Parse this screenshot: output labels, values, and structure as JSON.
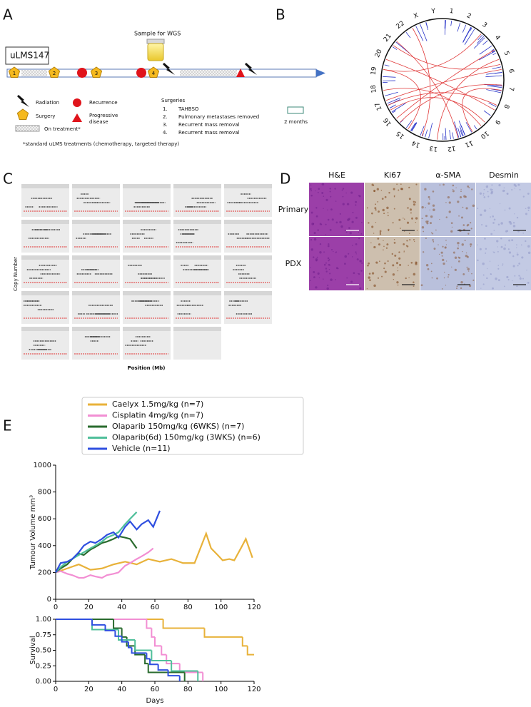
{
  "panel_a": {
    "label": "A",
    "sample": "Sample for WGS",
    "patient": "uLMS147",
    "events": [
      "1",
      "2",
      "3",
      "4"
    ],
    "legend": {
      "radiation": "Radiation",
      "surgery": "Surgery",
      "on_treatment": "On treatment*",
      "recurrence": "Recurrence",
      "progressive_disease": [
        "Progressive",
        "disease"
      ],
      "scale": "2 months"
    },
    "surgeries": {
      "title": "Surgeries",
      "items": [
        {
          "number": "1.",
          "text": "TAHBSO"
        },
        {
          "number": "2.",
          "text": "Pulmonary metastases removed"
        },
        {
          "number": "3.",
          "text": "Recurrent mass removal"
        },
        {
          "number": "4.",
          "text": "Recurrent mass removal"
        }
      ]
    },
    "footnote": "*standard uLMS treatments (chemotherapy, targeted therapy)"
  },
  "panel_b": {
    "label": "B",
    "chromosomes": [
      "1",
      "2",
      "3",
      "4",
      "5",
      "6",
      "7",
      "8",
      "9",
      "10",
      "11",
      "12",
      "13",
      "14",
      "15",
      "16",
      "17",
      "18",
      "19",
      "20",
      "21",
      "22",
      "X",
      "Y"
    ]
  },
  "panel_c": {
    "label": "C",
    "y_label": "Copy Number",
    "x_label": "Position (Mb)"
  },
  "panel_d": {
    "label": "D",
    "columns": [
      "H&E",
      "Ki67",
      "α-SMA",
      "Desmin"
    ],
    "rows": [
      "Primary",
      "PDX"
    ]
  },
  "panel_e": {
    "label": "E"
  },
  "chart_data": [
    {
      "type": "line",
      "ylabel": "Tumour Volume mm³",
      "xlim": [
        0,
        120
      ],
      "ylim": [
        0,
        1000
      ],
      "xticks": [
        0,
        20,
        40,
        60,
        80,
        100,
        120
      ],
      "yticks": [
        0,
        200,
        400,
        600,
        800,
        1000
      ],
      "series": [
        {
          "name": "Caelyx 1.5mg/kg (n=7)",
          "color": "#e8b23a",
          "x": [
            0,
            7,
            14,
            21,
            28,
            35,
            42,
            49,
            56,
            63,
            70,
            77,
            84,
            91,
            94,
            98,
            101,
            105,
            108,
            112,
            115,
            119
          ],
          "values": [
            200,
            230,
            260,
            220,
            230,
            260,
            280,
            260,
            300,
            280,
            300,
            270,
            270,
            490,
            380,
            330,
            290,
            300,
            290,
            380,
            450,
            310
          ]
        },
        {
          "name": "Cisplatin 4mg/kg (n=7)",
          "color": "#f28ed3",
          "x": [
            0,
            3,
            7,
            10,
            14,
            17,
            21,
            24,
            28,
            31,
            35,
            38,
            42,
            45,
            49,
            52,
            56,
            59
          ],
          "values": [
            200,
            210,
            190,
            180,
            160,
            160,
            180,
            170,
            160,
            180,
            190,
            200,
            250,
            270,
            300,
            320,
            350,
            380
          ]
        },
        {
          "name": "Olaparib 150mg/kg (6WKS) (n=7)",
          "color": "#2a6b2e",
          "x": [
            0,
            3,
            7,
            10,
            14,
            17,
            21,
            24,
            28,
            31,
            35,
            38,
            42,
            45,
            49
          ],
          "values": [
            200,
            230,
            260,
            300,
            340,
            330,
            370,
            390,
            420,
            430,
            450,
            470,
            460,
            450,
            380
          ]
        },
        {
          "name": "Olaparib(6d) 150mg/kg (3WKS) (n=6)",
          "color": "#4fbf9a",
          "x": [
            0,
            3,
            7,
            10,
            14,
            17,
            21,
            24,
            28,
            31,
            35,
            38,
            42,
            45,
            49
          ],
          "values": [
            200,
            240,
            280,
            300,
            330,
            350,
            380,
            400,
            430,
            460,
            480,
            500,
            560,
            600,
            650
          ]
        },
        {
          "name": "Vehicle (n=11)",
          "color": "#2f4fe0",
          "x": [
            0,
            3,
            7,
            10,
            14,
            17,
            21,
            24,
            28,
            31,
            35,
            38,
            42,
            45,
            49,
            52,
            56,
            59,
            63
          ],
          "values": [
            200,
            270,
            280,
            300,
            350,
            400,
            430,
            420,
            450,
            480,
            500,
            460,
            540,
            580,
            520,
            560,
            590,
            540,
            660
          ]
        }
      ]
    },
    {
      "type": "step",
      "xlabel": "Days",
      "ylabel": "Survival",
      "xlim": [
        0,
        120
      ],
      "ylim": [
        0,
        1
      ],
      "xticks": [
        0,
        20,
        40,
        60,
        80,
        100,
        120
      ],
      "yticks": [
        {
          "value": 0,
          "label": "0.00"
        },
        {
          "value": 0.25,
          "label": "0.25"
        },
        {
          "value": 0.5,
          "label": "0.50"
        },
        {
          "value": 0.75,
          "label": "0.75"
        },
        {
          "value": 1,
          "label": "1.00"
        }
      ],
      "series": [
        {
          "color": "#e8b23a",
          "x": [
            0,
            65,
            90,
            113,
            116,
            120
          ],
          "values": [
            1,
            0.857,
            0.714,
            0.571,
            0.429,
            0.429
          ]
        },
        {
          "color": "#f28ed3",
          "x": [
            0,
            55,
            58,
            60,
            64,
            67,
            75,
            89
          ],
          "values": [
            1,
            0.857,
            0.714,
            0.571,
            0.429,
            0.286,
            0.143,
            0
          ]
        },
        {
          "color": "#2a6b2e",
          "x": [
            0,
            35,
            40,
            43,
            48,
            54,
            56,
            78
          ],
          "values": [
            1,
            0.857,
            0.714,
            0.571,
            0.429,
            0.286,
            0.143,
            0
          ]
        },
        {
          "color": "#4fbf9a",
          "x": [
            0,
            22,
            38,
            48,
            58,
            70,
            86
          ],
          "values": [
            1,
            0.833,
            0.667,
            0.5,
            0.333,
            0.167,
            0
          ]
        },
        {
          "color": "#2f4fe0",
          "x": [
            0,
            22,
            30,
            36,
            40,
            44,
            46,
            55,
            57,
            62,
            68,
            75
          ],
          "values": [
            1,
            0.909,
            0.818,
            0.727,
            0.636,
            0.545,
            0.455,
            0.364,
            0.273,
            0.182,
            0.091,
            0
          ]
        }
      ]
    }
  ]
}
